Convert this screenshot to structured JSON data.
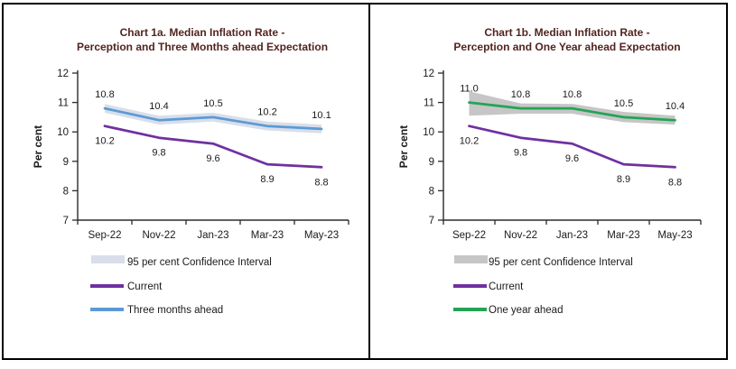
{
  "page": {
    "background": "#ffffff",
    "frame_border_color": "#000000",
    "text_color": "#1a1a1a",
    "axis_color": "#2b2b2b"
  },
  "chart_data": [
    {
      "type": "line",
      "title_line1": "Chart 1a. Median Inflation Rate -",
      "title_line2": "Perception and Three Months ahead Expectation",
      "title_color": "#522420",
      "ylabel": "Per cent",
      "ylim": [
        7,
        12
      ],
      "yticks": [
        "7",
        "8",
        "9",
        "10",
        "11",
        "12"
      ],
      "categories": [
        "Sep-22",
        "Nov-22",
        "Jan-23",
        "Mar-23",
        "May-23"
      ],
      "grid": "off",
      "legend_position": "bottom-left",
      "series": [
        {
          "name": "Current",
          "color": "#7030A0",
          "values": [
            10.2,
            9.8,
            9.6,
            8.9,
            8.8
          ],
          "labels": [
            "10.2",
            "9.8",
            "9.6",
            "8.9",
            "8.8"
          ],
          "label_side": "below"
        },
        {
          "name": "Three months ahead",
          "color": "#5B9BD5",
          "values": [
            10.8,
            10.4,
            10.5,
            10.2,
            10.1
          ],
          "labels": [
            "10.8",
            "10.4",
            "10.5",
            "10.2",
            "10.1"
          ],
          "label_side": "above"
        }
      ],
      "confidence_band": {
        "name": "95 per cent Confidence Interval",
        "color": "#D9DEEA",
        "around_series": "Three months ahead",
        "upper": [
          10.95,
          10.55,
          10.65,
          10.35,
          10.25
        ],
        "lower": [
          10.65,
          10.25,
          10.35,
          10.05,
          9.95
        ]
      }
    },
    {
      "type": "line",
      "title_line1": "Chart 1b. Median Inflation Rate -",
      "title_line2": "Perception and One Year ahead Expectation",
      "title_color": "#522420",
      "ylabel": "Per cent",
      "ylim": [
        7,
        12
      ],
      "yticks": [
        "7",
        "8",
        "9",
        "10",
        "11",
        "12"
      ],
      "categories": [
        "Sep-22",
        "Nov-22",
        "Jan-23",
        "Mar-23",
        "May-23"
      ],
      "grid": "off",
      "legend_position": "bottom-left",
      "series": [
        {
          "name": "Current",
          "color": "#7030A0",
          "values": [
            10.2,
            9.8,
            9.6,
            8.9,
            8.8
          ],
          "labels": [
            "10.2",
            "9.8",
            "9.6",
            "8.9",
            "8.8"
          ],
          "label_side": "below"
        },
        {
          "name": "One year ahead",
          "color": "#23A455",
          "values": [
            11.0,
            10.8,
            10.8,
            10.5,
            10.4
          ],
          "labels": [
            "11.0",
            "10.8",
            "10.8",
            "10.5",
            "10.4"
          ],
          "label_side": "above"
        }
      ],
      "confidence_band": {
        "name": "95 per cent Confidence Interval",
        "color": "#C6C6C6",
        "around_series": "One year ahead",
        "upper": [
          11.38,
          10.97,
          10.95,
          10.68,
          10.55
        ],
        "lower": [
          10.55,
          10.62,
          10.62,
          10.33,
          10.25
        ]
      }
    }
  ]
}
